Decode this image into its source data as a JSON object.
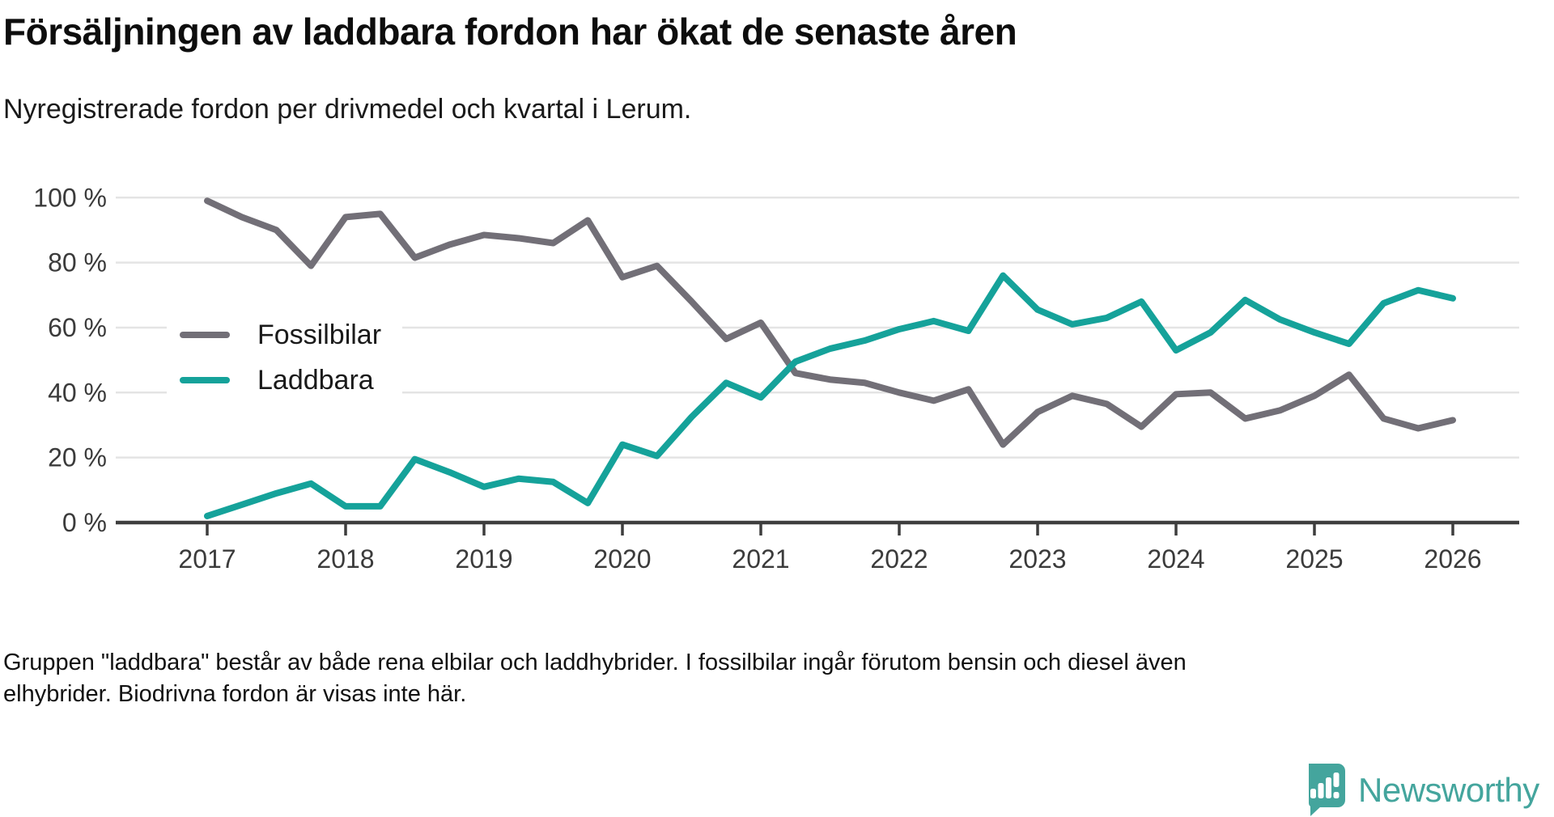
{
  "title": "Försäljningen av laddbara fordon har ökat de senaste åren",
  "subtitle": "Nyregistrerade fordon per drivmedel och kvartal i Lerum.",
  "footer": "Gruppen \"laddbara\" består av både rena elbilar och laddhybrider. I fossilbilar ingår förutom bensin och diesel även elhybrider. Biodrivna fordon är visas inte här.",
  "brand": {
    "name": "Newsworthy",
    "color": "#44a59d"
  },
  "chart_data": {
    "type": "line",
    "title": "Försäljningen av laddbara fordon har ökat de senaste åren",
    "xlabel": "",
    "ylabel": "",
    "ylim": [
      0,
      100
    ],
    "grid": true,
    "legend_position": "inside-left",
    "grid_color": "#e4e4e4",
    "axis_color": "#3e3e3e",
    "label_color": "#3b3b3b",
    "x_ticks": [
      "2017",
      "2018",
      "2019",
      "2020",
      "2021",
      "2022",
      "2023",
      "2024",
      "2025",
      "2026"
    ],
    "y_ticks": [
      "0 %",
      "20 %",
      "40 %",
      "60 %",
      "80 %",
      "100 %"
    ],
    "y_tick_values": [
      0,
      20,
      40,
      60,
      80,
      100
    ],
    "categories": [
      "2017 Q1",
      "2017 Q2",
      "2017 Q3",
      "2017 Q4",
      "2018 Q1",
      "2018 Q2",
      "2018 Q3",
      "2018 Q4",
      "2019 Q1",
      "2019 Q2",
      "2019 Q3",
      "2019 Q4",
      "2020 Q1",
      "2020 Q2",
      "2020 Q3",
      "2020 Q4",
      "2021 Q1",
      "2021 Q2",
      "2021 Q3",
      "2021 Q4",
      "2022 Q1",
      "2022 Q2",
      "2022 Q3",
      "2022 Q4",
      "2023 Q1",
      "2023 Q2",
      "2023 Q3",
      "2023 Q4",
      "2024 Q1",
      "2024 Q2",
      "2024 Q3",
      "2024 Q4",
      "2025 Q1",
      "2025 Q2",
      "2025 Q3",
      "2025 Q4",
      "2026 Q1"
    ],
    "series": [
      {
        "name": "Fossilbilar",
        "color": "#726f77",
        "values": [
          99,
          94,
          90,
          79,
          94,
          95,
          81.5,
          85.5,
          88.5,
          87.5,
          86,
          93,
          75.5,
          79,
          68,
          56.5,
          61.5,
          46,
          44,
          43,
          40,
          37.5,
          41,
          24,
          34,
          39,
          36.5,
          29.5,
          39.5,
          40,
          32,
          34.5,
          39,
          45.5,
          32,
          29,
          31.5
        ]
      },
      {
        "name": "Laddbara",
        "color": "#15a29a",
        "values": [
          2,
          5.5,
          9,
          12,
          5,
          5,
          19.5,
          15.5,
          11,
          13.5,
          12.5,
          6,
          24,
          20.5,
          32.5,
          43,
          38.5,
          49.5,
          53.5,
          56,
          59.5,
          62,
          59,
          76,
          65.5,
          61,
          63,
          68,
          53,
          58.5,
          68.5,
          62.5,
          58.5,
          55,
          67.5,
          71.5,
          69
        ]
      }
    ]
  }
}
